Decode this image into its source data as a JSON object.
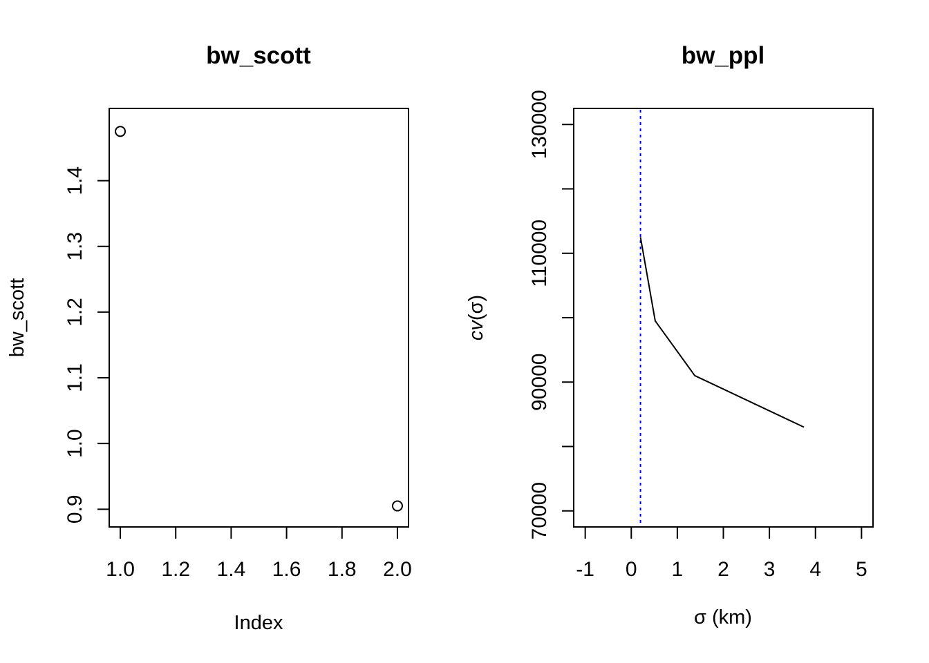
{
  "chart_data": [
    {
      "type": "scatter",
      "title": "bw_scott",
      "xlabel": "Index",
      "ylabel": "bw_scott",
      "x": [
        1,
        2
      ],
      "y": [
        1.475,
        0.905
      ],
      "xlim": [
        0.96,
        2.04
      ],
      "ylim": [
        0.873,
        1.51
      ],
      "xticks": [
        1.0,
        1.2,
        1.4,
        1.6,
        1.8,
        2.0
      ],
      "xtick_labels": [
        "1.0",
        "1.2",
        "1.4",
        "1.6",
        "1.8",
        "2.0"
      ],
      "yticks": [
        0.9,
        1.0,
        1.1,
        1.2,
        1.3,
        1.4
      ],
      "ytick_labels": [
        "0.9",
        "1.0",
        "1.1",
        "1.2",
        "1.3",
        "1.4"
      ],
      "marker": "open-circle",
      "grid": false
    },
    {
      "type": "line",
      "title": "bw_ppl",
      "xlabel_symbol": "σ",
      "xlabel_unit": " (km)",
      "ylabel_func": "cv",
      "ylabel_symbol": "σ",
      "x": [
        0.2,
        0.52,
        1.38,
        3.75
      ],
      "y": [
        112500,
        99500,
        91000,
        83000
      ],
      "xlim": [
        -1.25,
        5.25
      ],
      "ylim": [
        67500,
        132500
      ],
      "xticks": [
        -1,
        0,
        1,
        2,
        3,
        4,
        5
      ],
      "xtick_labels": [
        "-1",
        "0",
        "1",
        "2",
        "3",
        "4",
        "5"
      ],
      "yticks": [
        70000,
        80000,
        90000,
        100000,
        110000,
        120000,
        130000
      ],
      "ytick_labels": [
        "70000",
        "",
        "90000",
        "",
        "110000",
        "",
        "130000"
      ],
      "vline": {
        "x": 0.2,
        "color": "#0000ff",
        "style": "dotted"
      },
      "line_color": "#000000",
      "grid": false
    }
  ]
}
